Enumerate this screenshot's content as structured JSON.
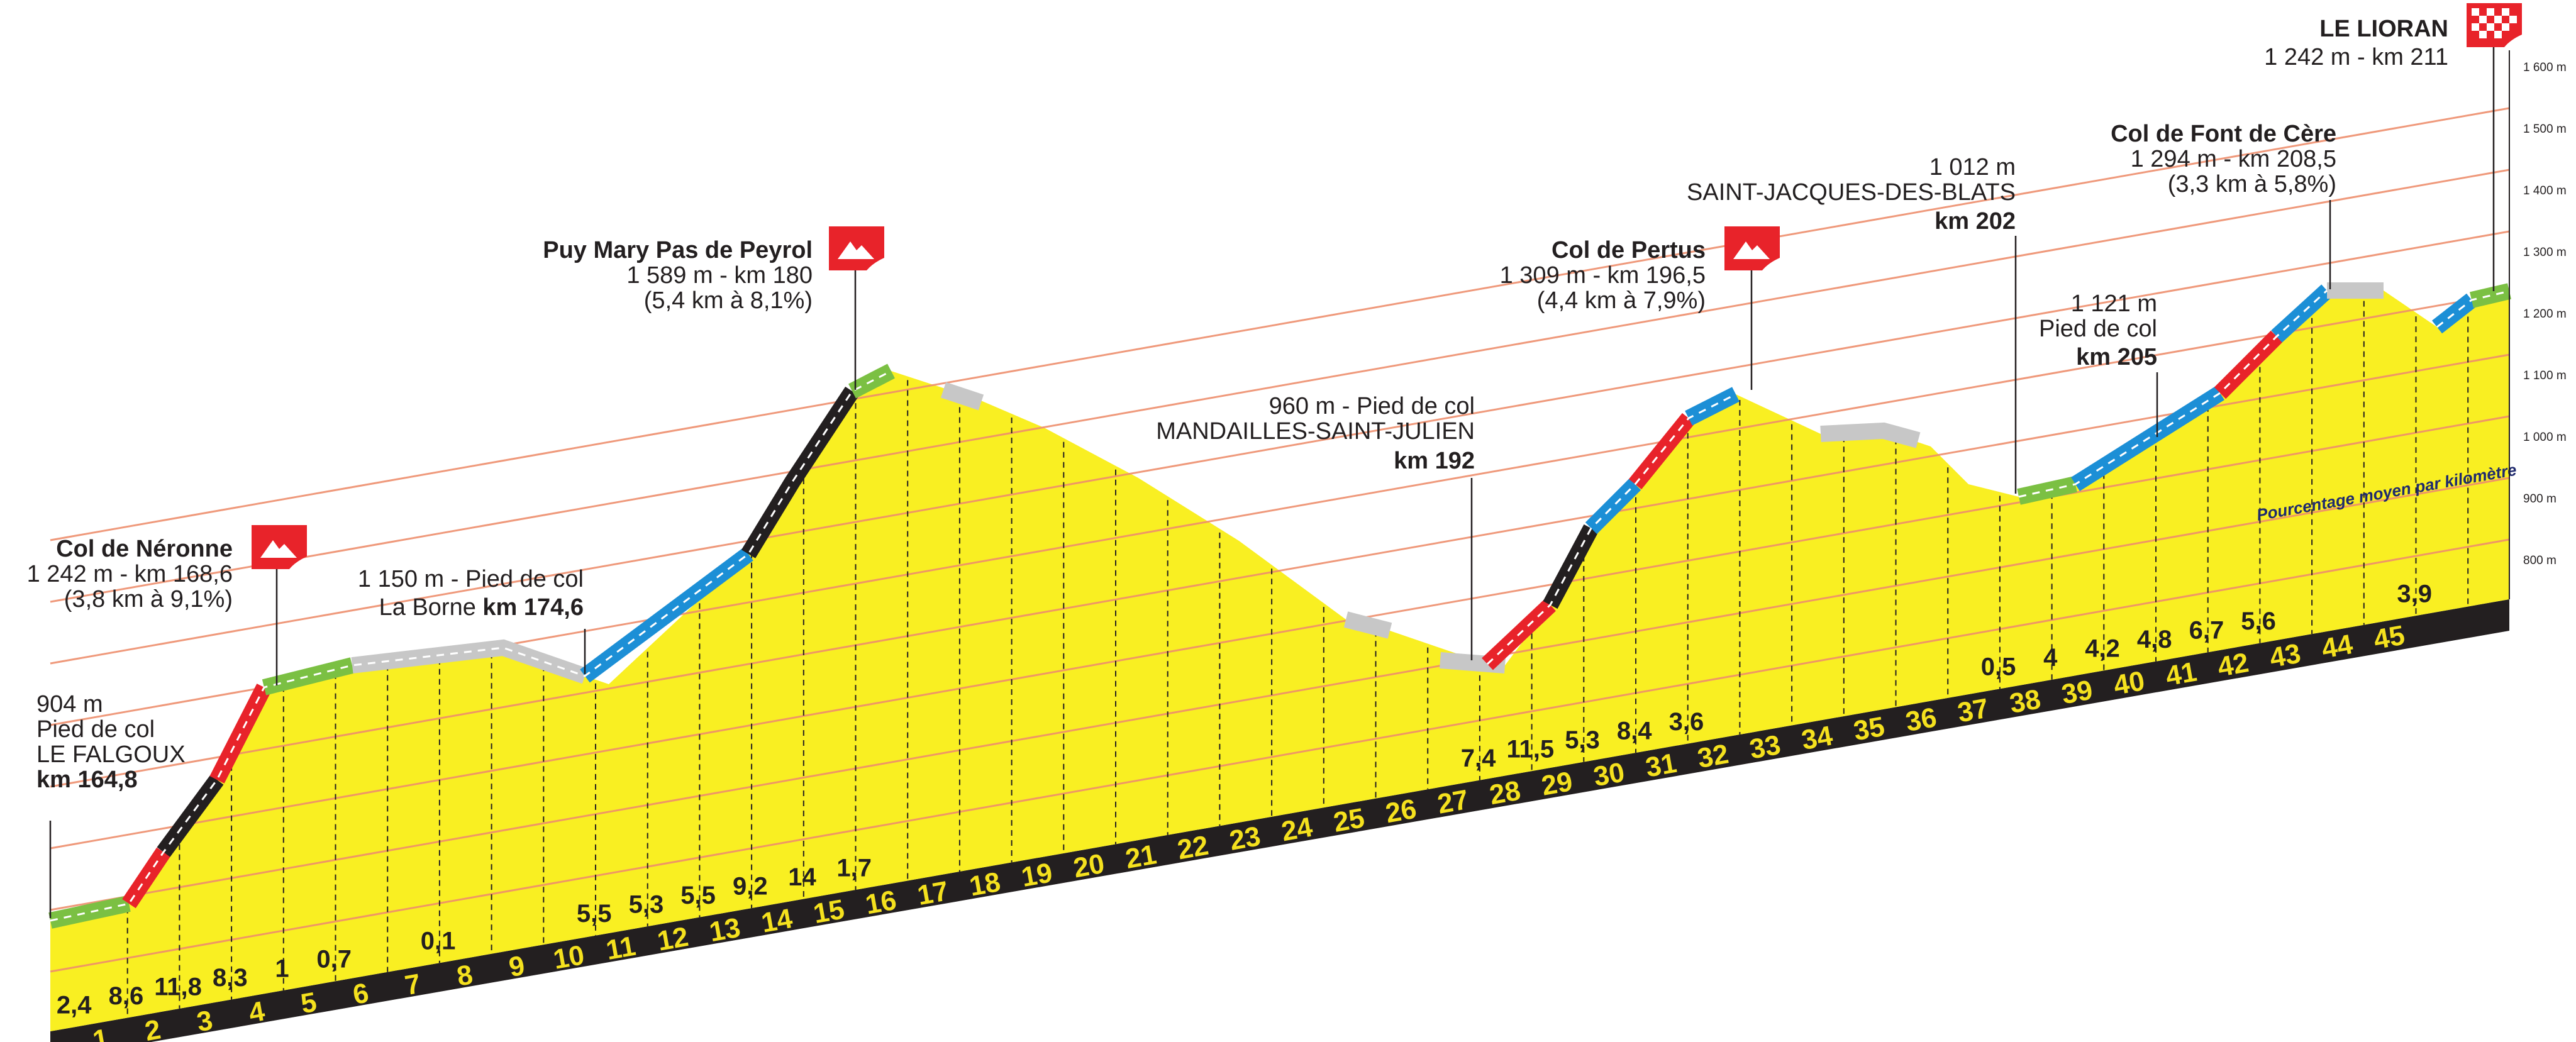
{
  "colors": {
    "profile_fill": "#f9ef22",
    "profile_side": "#231f20",
    "km_text": "#f5e11e",
    "grade_green": "#7bc043",
    "grade_blue": "#1c8fd6",
    "grade_red": "#e8232a",
    "grade_black": "#231f20",
    "grade_grey": "#c7c7c7"
  },
  "y_axis": {
    "ticks": [
      "1 600 m",
      "1 500 m",
      "1 400 m",
      "1 300 m",
      "1 200 m",
      "1 100 m",
      "1 000 m",
      "900 m",
      "800 m"
    ]
  },
  "km_labels": [
    "1",
    "2",
    "3",
    "4",
    "5",
    "6",
    "7",
    "8",
    "9",
    "10",
    "11",
    "12",
    "13",
    "14",
    "15",
    "16",
    "17",
    "18",
    "19",
    "20",
    "21",
    "22",
    "23",
    "24",
    "25",
    "26",
    "27",
    "28",
    "29",
    "30",
    "31",
    "32",
    "33",
    "34",
    "35",
    "36",
    "37",
    "38",
    "39",
    "40",
    "41",
    "42",
    "43",
    "44",
    "45"
  ],
  "gradients": [
    {
      "km": 1,
      "value": "2,4"
    },
    {
      "km": 2,
      "value": "8,6"
    },
    {
      "km": 3,
      "value": "11,8"
    },
    {
      "km": 4,
      "value": "8,3"
    },
    {
      "km": 5,
      "value": "1"
    },
    {
      "km": 6,
      "value": "0,7"
    },
    {
      "km": 8,
      "value": "0,1"
    },
    {
      "km": 11,
      "value": "5,5"
    },
    {
      "km": 12,
      "value": "5,3"
    },
    {
      "km": 13,
      "value": "5,5"
    },
    {
      "km": 14,
      "value": "9,2"
    },
    {
      "km": 15,
      "value": "14"
    },
    {
      "km": 16,
      "value": "1,7"
    },
    {
      "km": 28,
      "value": "7,4"
    },
    {
      "km": 29,
      "value": "11,5"
    },
    {
      "km": 30,
      "value": "5,3"
    },
    {
      "km": 31,
      "value": "8,4"
    },
    {
      "km": 32,
      "value": "3,6"
    },
    {
      "km": 38,
      "value": "0,5"
    },
    {
      "km": 39,
      "value": "4"
    },
    {
      "km": 40,
      "value": "4,2"
    },
    {
      "km": 41,
      "value": "4,8"
    },
    {
      "km": 42,
      "value": "6,7"
    },
    {
      "km": 43,
      "value": "5,6"
    },
    {
      "km": 46,
      "value": "3,9"
    }
  ],
  "note": "Pourcentage moyen par kilomètre",
  "annotations": {
    "falgoux": {
      "l1": "904 m",
      "l2": "Pied de col",
      "l3": "LE FALGOUX",
      "l4": "km 164,8"
    },
    "neronne": {
      "name": "Col de Néronne",
      "l2": "1 242 m - km 168,6",
      "l3": "(3,8 km à 9,1%)"
    },
    "borne": {
      "l1": "1 150 m - Pied de col",
      "l2a": "La Borne ",
      "l2b": "km 174,6"
    },
    "puy_mary": {
      "name": "Puy Mary Pas de Peyrol",
      "l2": "1 589 m - km 180",
      "l3": "(5,4 km à 8,1%)"
    },
    "mandailles": {
      "l1": "960 m - Pied de col",
      "l2": "MANDAILLES-SAINT-JULIEN",
      "l3": "km 192"
    },
    "pertus": {
      "name": "Col de Pertus",
      "l2": "1 309 m - km 196,5",
      "l3": "(4,4 km à 7,9%)"
    },
    "saint_jacques": {
      "l1": "1 012 m",
      "l2": "SAINT-JACQUES-DES-BLATS",
      "l3": "km 202"
    },
    "pied_205": {
      "l1": "1 121 m",
      "l2": "Pied de col",
      "l3": "km 205"
    },
    "font_de_cere": {
      "name": "Col de Font de Cère",
      "l2": "1 294 m - km 208,5",
      "l3": "(3,3 km à 5,8%)"
    },
    "lioran": {
      "name": "LE LIORAN",
      "l2": "1 242 m - km 211"
    }
  }
}
